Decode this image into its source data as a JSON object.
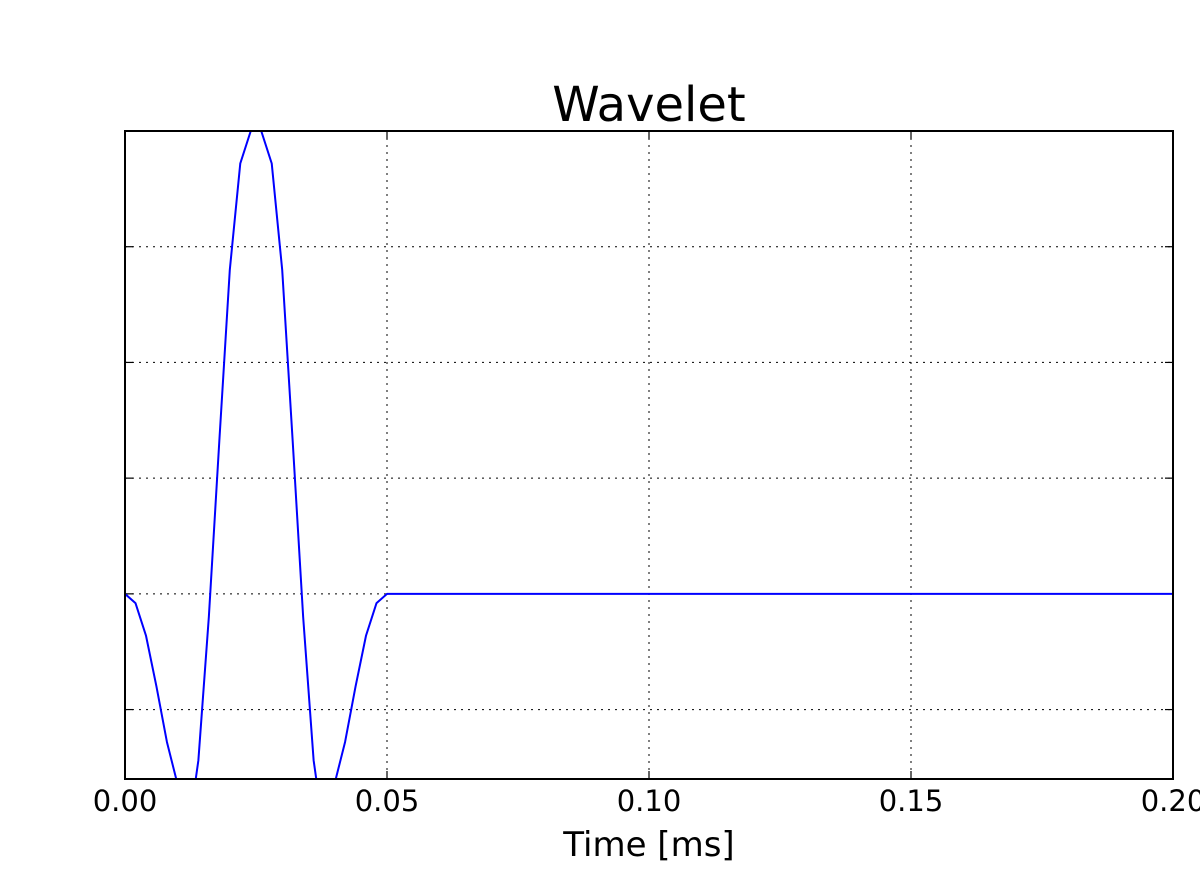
{
  "chart_data": {
    "type": "line",
    "title": "Wavelet",
    "xlabel": "Time [ms]",
    "ylabel": "",
    "xlim": [
      0,
      0.2
    ],
    "ylim": [
      -0.4,
      1.0
    ],
    "grid": true,
    "x_ticks": [
      0.0,
      0.05,
      0.1,
      0.15,
      0.2
    ],
    "x_tick_labels": [
      "0.00",
      "0.05",
      "0.10",
      "0.15",
      "0.20"
    ],
    "y_ticks": [
      -0.25,
      0.0,
      0.25,
      0.5,
      0.75,
      1.0
    ],
    "y_tick_labels": [],
    "series": [
      {
        "color": "#0000ff",
        "x": [
          0.0,
          0.002,
          0.004,
          0.006,
          0.008,
          0.01,
          0.011,
          0.012,
          0.0125,
          0.013,
          0.014,
          0.016,
          0.018,
          0.02,
          0.022,
          0.024,
          0.025,
          0.026,
          0.028,
          0.03,
          0.032,
          0.034,
          0.036,
          0.037,
          0.0375,
          0.038,
          0.039,
          0.04,
          0.042,
          0.044,
          0.046,
          0.048,
          0.05,
          0.06,
          0.08,
          0.1,
          0.12,
          0.14,
          0.16,
          0.18,
          0.2
        ],
        "y": [
          0.0,
          -0.02,
          -0.09,
          -0.2,
          -0.32,
          -0.41,
          -0.44,
          -0.45,
          -0.45,
          -0.44,
          -0.36,
          -0.05,
          0.33,
          0.7,
          0.93,
          1.0,
          1.01,
          1.0,
          0.93,
          0.7,
          0.33,
          -0.05,
          -0.36,
          -0.44,
          -0.45,
          -0.45,
          -0.44,
          -0.41,
          -0.32,
          -0.2,
          -0.09,
          -0.02,
          0.0,
          0.0,
          0.0,
          0.0,
          0.0,
          0.0,
          0.0,
          0.0,
          0.0
        ]
      }
    ]
  }
}
